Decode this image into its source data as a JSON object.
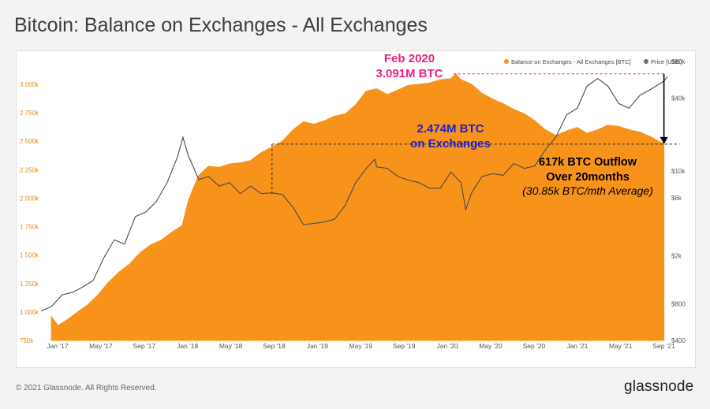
{
  "title": "Bitcoin: Balance on Exchanges - All Exchanges",
  "footer": {
    "copyright": "© 2021 Glassnode. All Rights Reserved.",
    "brand": "glassnode"
  },
  "watermark": "glassnode",
  "colors": {
    "balance": "#f7931a",
    "price": "#4a4a4a",
    "annot_pink": "#e8237f",
    "annot_blue": "#1d1fd2",
    "y_left_ticks": "#e48a1a"
  },
  "chart_data": {
    "type": "area",
    "title": "Bitcoin: Balance on Exchanges - All Exchanges",
    "legend": {
      "position": "top-right",
      "items": [
        "Balance on Exchanges - All Exchanges [BTC]",
        "Price [USD]"
      ]
    },
    "x_ticks": [
      "Jan '17",
      "May '17",
      "Sep '17",
      "Jan '18",
      "May '18",
      "Sep '18",
      "Jan '19",
      "May '19",
      "Sep '19",
      "Jan '20",
      "May '20",
      "Sep '20",
      "Jan '21",
      "May '21",
      "Sep '21"
    ],
    "x_range": [
      "2016-11-01",
      "2021-10-20"
    ],
    "y_left": {
      "ticks": [
        750000,
        1000000,
        1250000,
        1500000,
        1750000,
        2000000,
        2250000,
        2500000,
        2750000,
        3000000
      ],
      "tick_labels": [
        "750k",
        "1 000k",
        "1 250k",
        "1 500k",
        "1 750k",
        "2 000k",
        "2 250k",
        "2 500k",
        "2 750k",
        "3 000k"
      ],
      "range": [
        750000,
        3200000
      ]
    },
    "y_right": {
      "scale": "log",
      "ticks": [
        400,
        800,
        2000,
        6000,
        10000,
        40000,
        80000
      ],
      "tick_labels": [
        "$400",
        "$800",
        "$2k",
        "$6k",
        "$10k",
        "$40k",
        "$80k"
      ],
      "range": [
        400,
        80000
      ]
    },
    "series": [
      {
        "name": "Balance on Exchanges - All Exchanges [BTC]",
        "axis": "left",
        "points": [
          [
            "2016-12-01",
            960000
          ],
          [
            "2016-12-20",
            880000
          ],
          [
            "2017-01-15",
            930000
          ],
          [
            "2017-02-15",
            1000000
          ],
          [
            "2017-03-15",
            1060000
          ],
          [
            "2017-04-15",
            1150000
          ],
          [
            "2017-05-15",
            1260000
          ],
          [
            "2017-06-15",
            1350000
          ],
          [
            "2017-07-15",
            1420000
          ],
          [
            "2017-08-15",
            1520000
          ],
          [
            "2017-09-15",
            1590000
          ],
          [
            "2017-10-15",
            1630000
          ],
          [
            "2017-11-15",
            1700000
          ],
          [
            "2017-12-15",
            1760000
          ],
          [
            "2018-01-01",
            1970000
          ],
          [
            "2018-01-15",
            2080000
          ],
          [
            "2018-02-01",
            2200000
          ],
          [
            "2018-03-01",
            2280000
          ],
          [
            "2018-04-01",
            2270000
          ],
          [
            "2018-05-01",
            2300000
          ],
          [
            "2018-06-01",
            2310000
          ],
          [
            "2018-07-01",
            2330000
          ],
          [
            "2018-08-01",
            2400000
          ],
          [
            "2018-09-01",
            2450000
          ],
          [
            "2018-10-01",
            2500000
          ],
          [
            "2018-11-01",
            2600000
          ],
          [
            "2018-12-01",
            2670000
          ],
          [
            "2019-01-01",
            2650000
          ],
          [
            "2019-02-01",
            2680000
          ],
          [
            "2019-03-01",
            2720000
          ],
          [
            "2019-04-01",
            2740000
          ],
          [
            "2019-05-01",
            2820000
          ],
          [
            "2019-06-01",
            2940000
          ],
          [
            "2019-07-01",
            2960000
          ],
          [
            "2019-08-01",
            2910000
          ],
          [
            "2019-09-01",
            2950000
          ],
          [
            "2019-10-01",
            2990000
          ],
          [
            "2019-11-01",
            3000000
          ],
          [
            "2019-12-01",
            3010000
          ],
          [
            "2020-01-01",
            3040000
          ],
          [
            "2020-02-01",
            3050000
          ],
          [
            "2020-02-15",
            3091000
          ],
          [
            "2020-03-01",
            3040000
          ],
          [
            "2020-04-01",
            3000000
          ],
          [
            "2020-05-01",
            2920000
          ],
          [
            "2020-06-01",
            2870000
          ],
          [
            "2020-07-01",
            2830000
          ],
          [
            "2020-08-01",
            2780000
          ],
          [
            "2020-09-01",
            2740000
          ],
          [
            "2020-10-01",
            2680000
          ],
          [
            "2020-11-01",
            2600000
          ],
          [
            "2020-12-01",
            2550000
          ],
          [
            "2021-01-01",
            2590000
          ],
          [
            "2021-02-01",
            2620000
          ],
          [
            "2021-03-01",
            2570000
          ],
          [
            "2021-04-01",
            2600000
          ],
          [
            "2021-05-01",
            2640000
          ],
          [
            "2021-06-01",
            2630000
          ],
          [
            "2021-07-01",
            2600000
          ],
          [
            "2021-08-01",
            2580000
          ],
          [
            "2021-09-01",
            2540000
          ],
          [
            "2021-10-10",
            2474000
          ]
        ]
      },
      {
        "name": "Price [USD]",
        "axis": "right",
        "points": [
          [
            "2016-11-01",
            700
          ],
          [
            "2016-12-01",
            760
          ],
          [
            "2017-01-01",
            950
          ],
          [
            "2017-02-01",
            1000
          ],
          [
            "2017-03-01",
            1100
          ],
          [
            "2017-04-01",
            1250
          ],
          [
            "2017-05-01",
            1900
          ],
          [
            "2017-06-01",
            2700
          ],
          [
            "2017-07-01",
            2500
          ],
          [
            "2017-08-01",
            4200
          ],
          [
            "2017-09-01",
            4600
          ],
          [
            "2017-10-01",
            5600
          ],
          [
            "2017-11-01",
            8000
          ],
          [
            "2017-12-01",
            13000
          ],
          [
            "2017-12-17",
            19000
          ],
          [
            "2018-01-01",
            13500
          ],
          [
            "2018-02-01",
            8500
          ],
          [
            "2018-03-01",
            9000
          ],
          [
            "2018-04-01",
            7500
          ],
          [
            "2018-05-01",
            8000
          ],
          [
            "2018-06-01",
            6500
          ],
          [
            "2018-07-01",
            7500
          ],
          [
            "2018-08-01",
            6500
          ],
          [
            "2018-09-01",
            6600
          ],
          [
            "2018-10-01",
            6400
          ],
          [
            "2018-11-01",
            5000
          ],
          [
            "2018-12-01",
            3600
          ],
          [
            "2019-01-01",
            3700
          ],
          [
            "2019-02-01",
            3800
          ],
          [
            "2019-03-01",
            4000
          ],
          [
            "2019-04-01",
            5200
          ],
          [
            "2019-05-01",
            8000
          ],
          [
            "2019-06-01",
            10500
          ],
          [
            "2019-06-26",
            12500
          ],
          [
            "2019-07-01",
            10800
          ],
          [
            "2019-08-01",
            10500
          ],
          [
            "2019-09-01",
            9000
          ],
          [
            "2019-10-01",
            8400
          ],
          [
            "2019-11-01",
            8000
          ],
          [
            "2019-12-01",
            7200
          ],
          [
            "2020-01-01",
            7200
          ],
          [
            "2020-02-01",
            9800
          ],
          [
            "2020-03-01",
            8000
          ],
          [
            "2020-03-15",
            4800
          ],
          [
            "2020-04-01",
            6600
          ],
          [
            "2020-05-01",
            9000
          ],
          [
            "2020-06-01",
            9500
          ],
          [
            "2020-07-01",
            9200
          ],
          [
            "2020-08-01",
            11500
          ],
          [
            "2020-09-01",
            10500
          ],
          [
            "2020-10-01",
            11000
          ],
          [
            "2020-11-01",
            15000
          ],
          [
            "2020-12-01",
            19000
          ],
          [
            "2021-01-01",
            29000
          ],
          [
            "2021-02-01",
            33000
          ],
          [
            "2021-03-01",
            50000
          ],
          [
            "2021-04-01",
            58000
          ],
          [
            "2021-05-01",
            50000
          ],
          [
            "2021-06-01",
            36000
          ],
          [
            "2021-07-01",
            33000
          ],
          [
            "2021-08-01",
            42000
          ],
          [
            "2021-09-01",
            47000
          ],
          [
            "2021-10-10",
            55000
          ],
          [
            "2021-10-20",
            60000
          ]
        ]
      }
    ],
    "annotations": {
      "peak": {
        "line1": "Feb 2020",
        "line2": "3.091M BTC",
        "date": "2020-02-15",
        "value": 3091000
      },
      "current": {
        "line1": "2.474M BTC",
        "line2": "on Exchanges",
        "value": 2474000,
        "start_date": "2018-09-01",
        "end_date": "2021-10-10"
      },
      "outflow": {
        "line1": "617k BTC Outflow",
        "line2": "Over 20months",
        "line3": "(30.85k BTC/mth Average)"
      }
    }
  }
}
